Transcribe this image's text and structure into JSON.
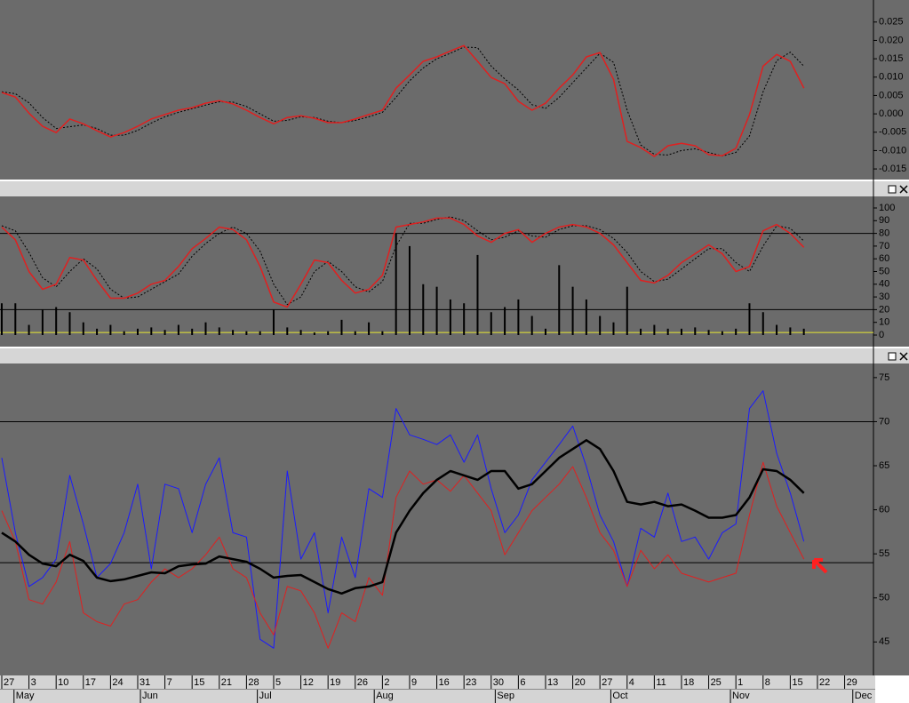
{
  "x_axis": {
    "xlim": [
      -0.065,
      32.06
    ],
    "ticks": [
      {
        "value": 0,
        "label": "27"
      },
      {
        "value": 1,
        "label": "3"
      },
      {
        "value": 2,
        "label": "10"
      },
      {
        "value": 3,
        "label": "17"
      },
      {
        "value": 4,
        "label": "24"
      },
      {
        "value": 5,
        "label": "31"
      },
      {
        "value": 6,
        "label": "7"
      },
      {
        "value": 7,
        "label": "15"
      },
      {
        "value": 8,
        "label": "21"
      },
      {
        "value": 9,
        "label": "28"
      },
      {
        "value": 10,
        "label": "5"
      },
      {
        "value": 11,
        "label": "12"
      },
      {
        "value": 12,
        "label": "19"
      },
      {
        "value": 13,
        "label": "26"
      },
      {
        "value": 14,
        "label": "2"
      },
      {
        "value": 15,
        "label": "9"
      },
      {
        "value": 16,
        "label": "16"
      },
      {
        "value": 17,
        "label": "23"
      },
      {
        "value": 18,
        "label": "30"
      },
      {
        "value": 19,
        "label": "6"
      },
      {
        "value": 20,
        "label": "13"
      },
      {
        "value": 21,
        "label": "20"
      },
      {
        "value": 22,
        "label": "27"
      },
      {
        "value": 23,
        "label": "4"
      },
      {
        "value": 24,
        "label": "11"
      },
      {
        "value": 25,
        "label": "18"
      },
      {
        "value": 26,
        "label": "25"
      },
      {
        "value": 27,
        "label": "1"
      },
      {
        "value": 28,
        "label": "8"
      },
      {
        "value": 29,
        "label": "15"
      },
      {
        "value": 30,
        "label": "22"
      },
      {
        "value": 31,
        "label": "29"
      }
    ],
    "months": [
      {
        "value": 0.45,
        "label": "May"
      },
      {
        "value": 5.1,
        "label": "Jun"
      },
      {
        "value": 9.4,
        "label": "Jul"
      },
      {
        "value": 13.7,
        "label": "Aug"
      },
      {
        "value": 18.15,
        "label": "Sep"
      },
      {
        "value": 22.4,
        "label": "Oct"
      },
      {
        "value": 26.8,
        "label": "Nov"
      },
      {
        "value": 31.3,
        "label": "Dec"
      }
    ]
  },
  "chart_data": [
    {
      "type": "line",
      "ylim": [
        -0.0174,
        0.031
      ],
      "yticks": [
        {
          "value": 0.025,
          "label": "0.025"
        },
        {
          "value": 0.02,
          "label": "0.020"
        },
        {
          "value": 0.015,
          "label": "0.015"
        },
        {
          "value": 0.01,
          "label": "0.010"
        },
        {
          "value": 0.005,
          "label": "0.005"
        },
        {
          "value": 0,
          "label": "0.000"
        },
        {
          "value": -0.005,
          "label": "-0.005"
        },
        {
          "value": -0.01,
          "label": "-0.010"
        },
        {
          "value": -0.015,
          "label": "-0.015"
        }
      ],
      "x": [
        0,
        0.5,
        1,
        1.5,
        2,
        2.5,
        3,
        3.5,
        4,
        4.5,
        5,
        5.5,
        6,
        6.5,
        7,
        7.5,
        8,
        8.5,
        9,
        9.5,
        10,
        10.5,
        11,
        11.5,
        12,
        12.5,
        13,
        13.5,
        14,
        14.5,
        15,
        15.5,
        16,
        16.5,
        17,
        17.5,
        18,
        18.5,
        19,
        19.5,
        20,
        20.5,
        21,
        21.5,
        22,
        22.5,
        23,
        23.5,
        24,
        24.5,
        25,
        25.5,
        26,
        26.5,
        27,
        27.5,
        28,
        28.5,
        29,
        29.5
      ],
      "series": [
        {
          "color": "#000000",
          "style": "dotted",
          "values": [
            0.006,
            0.0055,
            0.003,
            -0.001,
            -0.004,
            -0.0035,
            -0.003,
            -0.004,
            -0.0058,
            -0.0058,
            -0.0045,
            -0.0025,
            -0.0008,
            0.0004,
            0.0014,
            0.0024,
            0.0033,
            0.0032,
            0.002,
            0.0,
            -0.002,
            -0.0018,
            -0.0008,
            -0.001,
            -0.002,
            -0.0024,
            -0.0018,
            -0.0008,
            0.0004,
            0.0045,
            0.009,
            0.0125,
            0.015,
            0.0165,
            0.0182,
            0.018,
            0.013,
            0.0095,
            0.0065,
            0.0025,
            0.0015,
            0.0045,
            0.0085,
            0.0125,
            0.0165,
            0.014,
            0.001,
            -0.0085,
            -0.011,
            -0.0112,
            -0.01,
            -0.0095,
            -0.0105,
            -0.0115,
            -0.0105,
            -0.006,
            0.006,
            0.0145,
            0.0168,
            0.013
          ]
        },
        {
          "color": "#e02020",
          "style": "solid",
          "values": [
            0.0058,
            0.0046,
            0.0002,
            -0.0034,
            -0.0051,
            -0.0014,
            -0.0027,
            -0.0046,
            -0.0063,
            -0.0051,
            -0.0034,
            -0.0014,
            -0.0002,
            0.001,
            0.0017,
            0.0029,
            0.0036,
            0.0027,
            0.001,
            -0.001,
            -0.0027,
            -0.001,
            -0.0005,
            -0.0012,
            -0.0024,
            -0.0024,
            -0.0014,
            -0.0002,
            0.001,
            0.007,
            0.0106,
            0.0143,
            0.0155,
            0.0171,
            0.0186,
            0.0143,
            0.0099,
            0.0082,
            0.0034,
            0.001,
            0.0029,
            0.007,
            0.0106,
            0.0155,
            0.0167,
            0.0094,
            -0.0075,
            -0.0092,
            -0.0116,
            -0.0087,
            -0.008,
            -0.0087,
            -0.0111,
            -0.0114,
            -0.0094,
            -0.0002,
            0.013,
            0.0162,
            0.0143,
            0.007
          ]
        }
      ]
    },
    {
      "type": "line",
      "ylim": [
        -7.7,
        108.4
      ],
      "yticks": [
        0,
        10,
        20,
        30,
        40,
        50,
        60,
        70,
        80,
        90,
        100
      ],
      "hlines": [
        {
          "value": 80,
          "color": "#000000"
        },
        {
          "value": 20,
          "color": "#000000"
        },
        {
          "value": 2,
          "color": "#e8e830"
        }
      ],
      "x": [
        0,
        0.5,
        1,
        1.5,
        2,
        2.5,
        3,
        3.5,
        4,
        4.5,
        5,
        5.5,
        6,
        6.5,
        7,
        7.5,
        8,
        8.5,
        9,
        9.5,
        10,
        10.5,
        11,
        11.5,
        12,
        12.5,
        13,
        13.5,
        14,
        14.5,
        15,
        15.5,
        16,
        16.5,
        17,
        17.5,
        18,
        18.5,
        19,
        19.5,
        20,
        20.5,
        21,
        21.5,
        22,
        22.5,
        23,
        23.5,
        24,
        24.5,
        25,
        25.5,
        26,
        26.5,
        27,
        27.5,
        28,
        28.5,
        29,
        29.5
      ],
      "series": [
        {
          "type": "bar",
          "color": "#000000",
          "values": [
            25,
            25,
            8,
            20,
            22,
            18,
            10,
            5,
            8,
            3,
            5,
            6,
            4,
            8,
            5,
            10,
            6,
            4,
            3,
            3,
            20,
            6,
            4,
            2,
            3,
            12,
            3,
            10,
            3,
            80,
            70,
            40,
            38,
            28,
            25,
            63,
            18,
            22,
            28,
            15,
            5,
            55,
            38,
            28,
            15,
            10,
            38,
            5,
            8,
            5,
            5,
            6,
            4,
            3,
            5,
            25,
            18,
            8,
            6,
            5
          ]
        },
        {
          "color": "#000000",
          "style": "dotted",
          "values": [
            86,
            82,
            65,
            45,
            38,
            50,
            60,
            52,
            36,
            29,
            30,
            36,
            42,
            48,
            62,
            72,
            80,
            85,
            80,
            66,
            40,
            24,
            30,
            50,
            58,
            50,
            38,
            34,
            42,
            70,
            88,
            88,
            91,
            93,
            90,
            82,
            75,
            77,
            82,
            78,
            77,
            83,
            86,
            86,
            83,
            76,
            65,
            50,
            42,
            44,
            52,
            60,
            68,
            68,
            57,
            50,
            70,
            86,
            84,
            74
          ]
        },
        {
          "color": "#e02020",
          "style": "solid",
          "values": [
            85,
            75,
            50,
            36,
            40,
            61,
            59,
            43,
            29,
            29,
            33,
            40,
            43,
            54,
            68,
            76,
            85,
            83,
            75,
            54,
            26,
            22,
            40,
            59,
            57,
            43,
            33,
            36,
            47,
            85,
            87,
            89,
            92,
            92,
            87,
            78,
            73,
            80,
            83,
            73,
            80,
            85,
            87,
            85,
            80,
            71,
            57,
            43,
            41,
            47,
            57,
            64,
            71,
            64,
            50,
            54,
            82,
            87,
            80,
            69
          ]
        }
      ]
    },
    {
      "type": "line",
      "ylim": [
        41.2,
        76.5
      ],
      "yticks": [
        45,
        50,
        55,
        60,
        65,
        70,
        75
      ],
      "hlines": [
        {
          "value": 70,
          "color": "#000000"
        },
        {
          "value": 54,
          "color": "#000000"
        }
      ],
      "x": [
        0,
        0.5,
        1,
        1.5,
        2,
        2.5,
        3,
        3.5,
        4,
        4.5,
        5,
        5.5,
        6,
        6.5,
        7,
        7.5,
        8,
        8.5,
        9,
        9.5,
        10,
        10.5,
        11,
        11.5,
        12,
        12.5,
        13,
        13.5,
        14,
        14.5,
        15,
        15.5,
        16,
        16.5,
        17,
        17.5,
        18,
        18.5,
        19,
        19.5,
        20,
        20.5,
        21,
        21.5,
        22,
        22.5,
        23,
        23.5,
        24,
        24.5,
        25,
        25.5,
        26,
        26.5,
        27,
        27.5,
        28,
        28.5,
        29,
        29.5
      ],
      "series": [
        {
          "color": "#1a1aff",
          "style": "solid",
          "width": 1,
          "values": [
            65.9,
            57.4,
            51.3,
            52.3,
            54.4,
            63.9,
            58.4,
            52.3,
            53.9,
            57.4,
            62.9,
            53.3,
            62.9,
            62.4,
            57.4,
            62.9,
            65.9,
            57.4,
            56.9,
            45.3,
            44.3,
            64.4,
            54.4,
            57.4,
            48.3,
            56.9,
            52.3,
            62.4,
            61.4,
            71.5,
            68.5,
            68.0,
            67.4,
            68.5,
            65.4,
            68.5,
            62.4,
            57.4,
            59.4,
            63.4,
            65.4,
            67.4,
            69.5,
            64.9,
            59.4,
            56.4,
            51.3,
            57.9,
            56.9,
            61.9,
            56.4,
            56.9,
            54.4,
            57.4,
            58.4,
            71.5,
            73.5,
            66.4,
            61.9,
            56.4
          ]
        },
        {
          "color": "#e02020",
          "style": "solid",
          "width": 1,
          "values": [
            59.9,
            56.4,
            49.8,
            49.3,
            51.8,
            56.4,
            48.3,
            47.3,
            46.8,
            49.3,
            49.8,
            51.8,
            53.3,
            52.3,
            53.3,
            54.9,
            56.9,
            53.3,
            52.3,
            48.3,
            45.8,
            51.3,
            50.8,
            48.3,
            44.3,
            48.3,
            47.3,
            52.3,
            50.3,
            61.4,
            64.4,
            62.9,
            63.4,
            62.1,
            63.9,
            61.9,
            59.9,
            54.9,
            57.4,
            59.9,
            61.4,
            62.9,
            64.9,
            61.4,
            57.4,
            55.4,
            51.3,
            55.4,
            53.3,
            54.9,
            52.8,
            52.3,
            51.8,
            52.3,
            52.8,
            59.4,
            65.4,
            60.4,
            57.4,
            54.4
          ]
        },
        {
          "color": "#000000",
          "style": "solid",
          "width": 2.5,
          "values": [
            57.4,
            56.4,
            54.9,
            53.9,
            53.6,
            54.9,
            54.2,
            52.3,
            51.9,
            52.1,
            52.5,
            52.9,
            52.8,
            53.6,
            53.8,
            53.9,
            54.7,
            54.4,
            54.1,
            53.3,
            52.3,
            52.5,
            52.6,
            51.8,
            51.0,
            50.5,
            51.1,
            51.3,
            51.8,
            57.4,
            59.9,
            61.9,
            63.4,
            64.4,
            63.9,
            63.4,
            64.4,
            64.4,
            62.4,
            62.9,
            64.4,
            65.9,
            66.9,
            67.9,
            66.9,
            64.4,
            60.9,
            60.6,
            60.9,
            60.4,
            60.6,
            59.9,
            59.1,
            59.1,
            59.4,
            61.4,
            64.6,
            64.4,
            63.4,
            61.9
          ]
        }
      ]
    }
  ]
}
